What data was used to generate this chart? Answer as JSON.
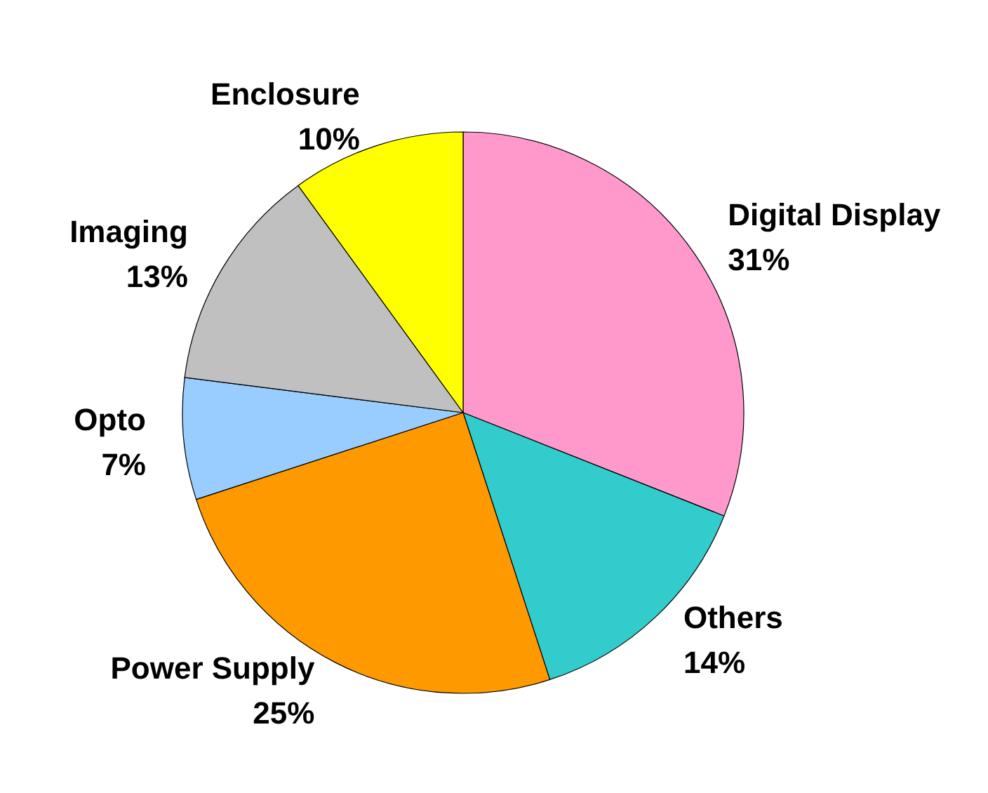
{
  "chart_data": {
    "type": "pie",
    "categories": [
      "Digital Display",
      "Others",
      "Power Supply",
      "Opto",
      "Imaging",
      "Enclosure"
    ],
    "values": [
      31,
      14,
      25,
      7,
      13,
      10
    ],
    "value_labels": [
      "31%",
      "14%",
      "25%",
      "7%",
      "13%",
      "10%"
    ],
    "colors": [
      "#ff99cc",
      "#33cccc",
      "#ff9900",
      "#99ccff",
      "#c0c0c0",
      "#ffff00"
    ],
    "legend": false
  }
}
